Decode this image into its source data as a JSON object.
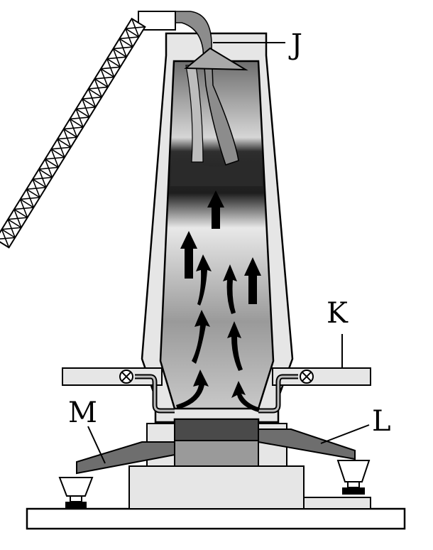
{
  "labels": {
    "J": "J",
    "K": "K",
    "L": "L",
    "M": "M"
  },
  "colors": {
    "outline": "#000000",
    "light_fill": "#e6e6e6",
    "mid_gray": "#8c8c8c",
    "dark_band": "#2e2e2e",
    "white": "#ffffff"
  }
}
